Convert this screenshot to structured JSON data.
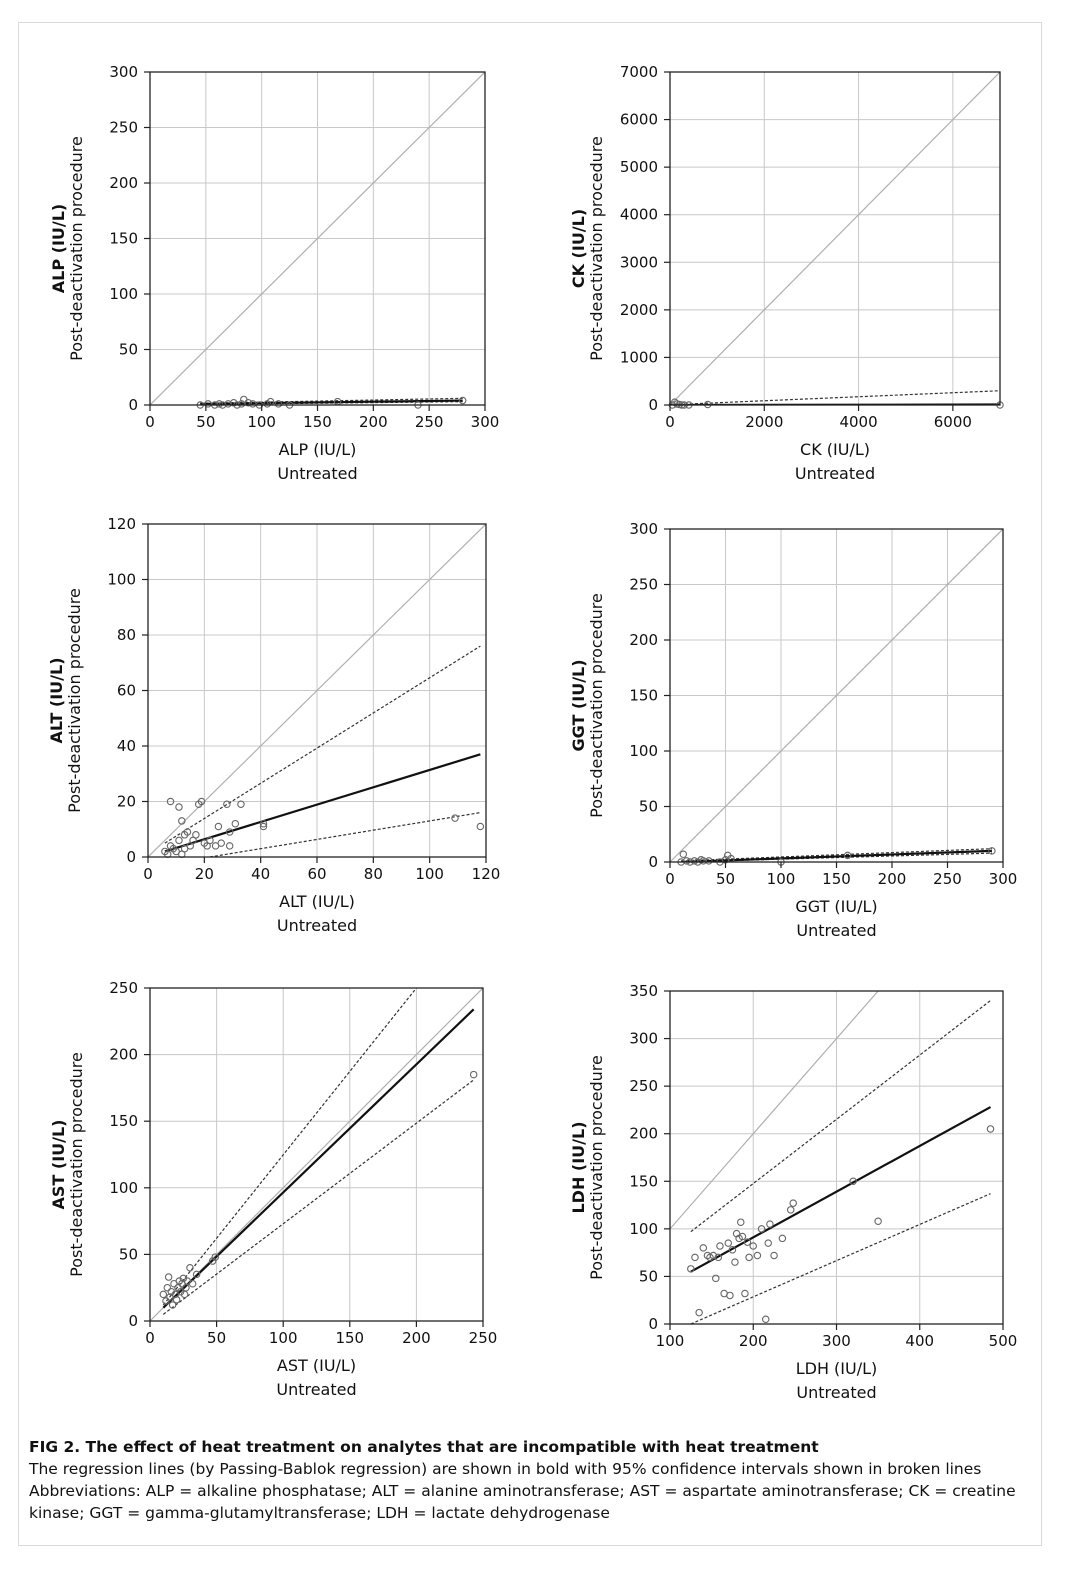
{
  "caption": {
    "title": "FIG 2. The effect of heat treatment on analytes that are incompatible with heat treatment",
    "lines": [
      "The regression lines (by Passing-Bablok regression) are shown in bold with 95% confidence intervals shown in broken lines",
      "Abbreviations: ALP = alkaline phosphatase; ALT = alanine aminotransferase; AST = aspartate aminotransferase; CK = creatine",
      "kinase; GGT = gamma-glutamyltransferase; LDH = lactate dehydrogenase"
    ]
  },
  "colors": {
    "point": "#666666",
    "identity": "#b0b0b0",
    "regression": "#111111",
    "ci": "#333333",
    "grid": "#c8c8c8"
  },
  "chart_data": [
    {
      "id": "alp",
      "type": "scatter",
      "ylabel": "ALP (IU/L)",
      "ylabel2": "Post-deactivation procedure",
      "xlabel": "ALP (IU/L)",
      "xlabel2": "Untreated",
      "xlim": [
        0,
        300
      ],
      "ylim": [
        0,
        300
      ],
      "xticks": [
        0,
        50,
        100,
        150,
        200,
        250,
        300
      ],
      "yticks": [
        0,
        50,
        100,
        150,
        200,
        250,
        300
      ],
      "identity": [
        [
          0,
          0
        ],
        [
          300,
          300
        ]
      ],
      "regression": [
        [
          45,
          1
        ],
        [
          280,
          4
        ]
      ],
      "ci_upper": [
        [
          45,
          1.5
        ],
        [
          280,
          6
        ]
      ],
      "ci_lower": [
        [
          45,
          0.5
        ],
        [
          280,
          3
        ]
      ],
      "points": [
        [
          45,
          0
        ],
        [
          52,
          1
        ],
        [
          58,
          0
        ],
        [
          62,
          1
        ],
        [
          65,
          0
        ],
        [
          70,
          1
        ],
        [
          75,
          2
        ],
        [
          78,
          0
        ],
        [
          82,
          1
        ],
        [
          84,
          5
        ],
        [
          88,
          2
        ],
        [
          92,
          1
        ],
        [
          98,
          0
        ],
        [
          105,
          1
        ],
        [
          108,
          3
        ],
        [
          115,
          1
        ],
        [
          125,
          0
        ],
        [
          168,
          3
        ],
        [
          240,
          0
        ],
        [
          280,
          4
        ]
      ]
    },
    {
      "id": "ck",
      "type": "scatter",
      "ylabel": "CK (IU/L)",
      "ylabel2": "Post-deactivation procedure",
      "xlabel": "CK (IU/L)",
      "xlabel2": "Untreated",
      "xlim": [
        0,
        7000
      ],
      "ylim": [
        0,
        7000
      ],
      "xticks": [
        0,
        2000,
        4000,
        6000
      ],
      "yticks": [
        0,
        1000,
        2000,
        3000,
        4000,
        5000,
        6000,
        7000
      ],
      "identity": [
        [
          0,
          0
        ],
        [
          7000,
          7000
        ]
      ],
      "regression": [
        [
          0,
          0
        ],
        [
          7000,
          10
        ]
      ],
      "ci_upper": [
        [
          0,
          5
        ],
        [
          7000,
          300
        ]
      ],
      "ci_lower": [
        [
          0,
          0
        ],
        [
          7000,
          0
        ]
      ],
      "points": [
        [
          50,
          0
        ],
        [
          100,
          60
        ],
        [
          150,
          20
        ],
        [
          200,
          10
        ],
        [
          250,
          0
        ],
        [
          300,
          0
        ],
        [
          400,
          0
        ],
        [
          800,
          10
        ],
        [
          7000,
          0
        ]
      ]
    },
    {
      "id": "alt",
      "type": "scatter",
      "ylabel": "ALT (IU/L)",
      "ylabel2": "Post-deactivation procedure",
      "xlabel": "ALT (IU/L)",
      "xlabel2": "Untreated",
      "xlim": [
        0,
        120
      ],
      "ylim": [
        0,
        120
      ],
      "xticks": [
        0,
        20,
        40,
        60,
        80,
        100,
        120
      ],
      "yticks": [
        0,
        20,
        40,
        60,
        80,
        100,
        120
      ],
      "identity": [
        [
          0,
          0
        ],
        [
          120,
          120
        ]
      ],
      "regression": [
        [
          6,
          2
        ],
        [
          118,
          37
        ]
      ],
      "ci_upper": [
        [
          6,
          5
        ],
        [
          118,
          76
        ]
      ],
      "ci_lower": [
        [
          22,
          0
        ],
        [
          118,
          16
        ]
      ],
      "points": [
        [
          6,
          2
        ],
        [
          7,
          1
        ],
        [
          8,
          4
        ],
        [
          8,
          20
        ],
        [
          9,
          3
        ],
        [
          10,
          2
        ],
        [
          11,
          6
        ],
        [
          11,
          18
        ],
        [
          12,
          13
        ],
        [
          12,
          1
        ],
        [
          13,
          8
        ],
        [
          13,
          3
        ],
        [
          14,
          9
        ],
        [
          15,
          4
        ],
        [
          16,
          6
        ],
        [
          17,
          8
        ],
        [
          18,
          19
        ],
        [
          19,
          20
        ],
        [
          20,
          5
        ],
        [
          21,
          4
        ],
        [
          22,
          6
        ],
        [
          24,
          4
        ],
        [
          25,
          11
        ],
        [
          26,
          5
        ],
        [
          28,
          19
        ],
        [
          29,
          9
        ],
        [
          29,
          4
        ],
        [
          31,
          12
        ],
        [
          33,
          19
        ],
        [
          41,
          12
        ],
        [
          41,
          11
        ],
        [
          109,
          14
        ],
        [
          118,
          11
        ]
      ]
    },
    {
      "id": "ggt",
      "type": "scatter",
      "ylabel": "GGT (IU/L)",
      "ylabel2": "Post-deactivation procedure",
      "xlabel": "GGT (IU/L)",
      "xlabel2": "Untreated",
      "xlim": [
        0,
        300
      ],
      "ylim": [
        0,
        300
      ],
      "xticks": [
        0,
        50,
        100,
        150,
        200,
        250,
        300
      ],
      "yticks": [
        0,
        50,
        100,
        150,
        200,
        250,
        300
      ],
      "identity": [
        [
          0,
          0
        ],
        [
          300,
          300
        ]
      ],
      "regression": [
        [
          10,
          0
        ],
        [
          290,
          10
        ]
      ],
      "ci_upper": [
        [
          10,
          1
        ],
        [
          290,
          12
        ]
      ],
      "ci_lower": [
        [
          10,
          0
        ],
        [
          290,
          8
        ]
      ],
      "points": [
        [
          10,
          0
        ],
        [
          12,
          7
        ],
        [
          15,
          1
        ],
        [
          18,
          0
        ],
        [
          22,
          1
        ],
        [
          25,
          0
        ],
        [
          28,
          2
        ],
        [
          30,
          1
        ],
        [
          35,
          1
        ],
        [
          45,
          0
        ],
        [
          50,
          2
        ],
        [
          52,
          6
        ],
        [
          55,
          3
        ],
        [
          100,
          0
        ],
        [
          160,
          6
        ],
        [
          290,
          10
        ]
      ]
    },
    {
      "id": "ast",
      "type": "scatter",
      "ylabel": "AST (IU/L)",
      "ylabel2": "Post-deactivation procedure",
      "xlabel": "AST (IU/L)",
      "xlabel2": "Untreated",
      "xlim": [
        0,
        250
      ],
      "ylim": [
        0,
        250
      ],
      "xticks": [
        0,
        50,
        100,
        150,
        200,
        250
      ],
      "yticks": [
        0,
        50,
        100,
        150,
        200,
        250
      ],
      "identity": [
        [
          0,
          0
        ],
        [
          250,
          250
        ]
      ],
      "regression": [
        [
          10,
          10
        ],
        [
          243,
          234
        ]
      ],
      "ci_upper": [
        [
          10,
          12
        ],
        [
          200,
          250
        ]
      ],
      "ci_lower": [
        [
          10,
          5
        ],
        [
          243,
          181
        ]
      ],
      "points": [
        [
          10,
          20
        ],
        [
          12,
          15
        ],
        [
          13,
          25
        ],
        [
          14,
          33
        ],
        [
          15,
          18
        ],
        [
          16,
          22
        ],
        [
          17,
          12
        ],
        [
          18,
          28
        ],
        [
          19,
          20
        ],
        [
          20,
          16
        ],
        [
          21,
          25
        ],
        [
          22,
          30
        ],
        [
          23,
          22
        ],
        [
          24,
          28
        ],
        [
          25,
          32
        ],
        [
          26,
          20
        ],
        [
          27,
          25
        ],
        [
          28,
          30
        ],
        [
          30,
          40
        ],
        [
          32,
          28
        ],
        [
          35,
          35
        ],
        [
          47,
          45
        ],
        [
          49,
          48
        ],
        [
          243,
          185
        ]
      ]
    },
    {
      "id": "ldh",
      "type": "scatter",
      "ylabel": "LDH (IU/L)",
      "ylabel2": "Post-deactivation procedure",
      "xlabel": "LDH (IU/L)",
      "xlabel2": "Untreated",
      "xlim": [
        100,
        500
      ],
      "ylim": [
        0,
        350
      ],
      "xticks": [
        100,
        200,
        300,
        400,
        500
      ],
      "yticks": [
        0,
        50,
        100,
        150,
        200,
        250,
        300,
        350
      ],
      "identity": [
        [
          100,
          100
        ],
        [
          350,
          350
        ]
      ],
      "regression": [
        [
          125,
          55
        ],
        [
          485,
          228
        ]
      ],
      "ci_upper": [
        [
          125,
          97
        ],
        [
          485,
          340
        ]
      ],
      "ci_lower": [
        [
          125,
          0
        ],
        [
          485,
          137
        ]
      ],
      "points": [
        [
          125,
          58
        ],
        [
          130,
          70
        ],
        [
          135,
          12
        ],
        [
          140,
          80
        ],
        [
          145,
          72
        ],
        [
          148,
          70
        ],
        [
          152,
          72
        ],
        [
          155,
          48
        ],
        [
          158,
          70
        ],
        [
          160,
          82
        ],
        [
          165,
          32
        ],
        [
          170,
          85
        ],
        [
          172,
          30
        ],
        [
          175,
          78
        ],
        [
          178,
          65
        ],
        [
          180,
          95
        ],
        [
          183,
          90
        ],
        [
          185,
          107
        ],
        [
          187,
          92
        ],
        [
          190,
          32
        ],
        [
          193,
          86
        ],
        [
          195,
          70
        ],
        [
          200,
          82
        ],
        [
          205,
          72
        ],
        [
          210,
          100
        ],
        [
          215,
          5
        ],
        [
          218,
          85
        ],
        [
          220,
          105
        ],
        [
          225,
          72
        ],
        [
          235,
          90
        ],
        [
          245,
          120
        ],
        [
          248,
          127
        ],
        [
          320,
          150
        ],
        [
          350,
          108
        ],
        [
          485,
          205
        ]
      ]
    }
  ]
}
